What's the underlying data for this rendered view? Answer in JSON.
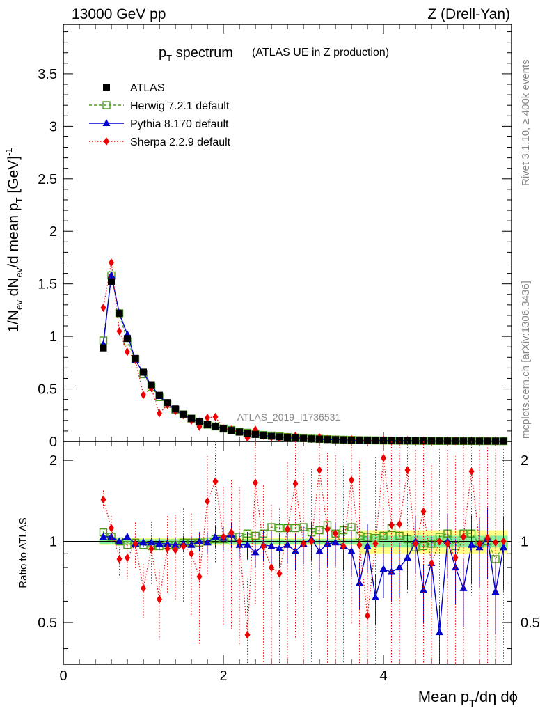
{
  "header": {
    "left": "13000 GeV pp",
    "right": "Z (Drell-Yan)"
  },
  "title": {
    "main": "p",
    "sub": "T",
    "rest": " spectrum",
    "small": "(ATLAS UE in Z production)"
  },
  "side_labels": {
    "rivet": "Rivet 3.1.10, ≥ 400k events",
    "mcplots": "mcplots.cern.ch [arXiv:1306.3436]"
  },
  "watermark": "ATLAS_2019_I1736531",
  "axes": {
    "ylabel_main": "1/N_ev dN_ev/d mean p_T [GeV]^-1",
    "ylabel_main_parts": {
      "a": "1/N",
      "a_sub": "ev",
      "b": " dN",
      "b_sub": "ev",
      "c": "/d mean p",
      "c_sub": "T",
      "d": " [GeV]",
      "d_sup": "-1"
    },
    "ylabel_ratio": "Ratio to ATLAS",
    "xlabel_parts": {
      "a": "Mean p",
      "a_sub": "T",
      "b": "/dη dϕ"
    },
    "x_ticks": [
      "0",
      "2",
      "4"
    ],
    "main_y_ticks": [
      "0",
      "0.5",
      "1",
      "1.5",
      "2",
      "2.5",
      "3",
      "3.5"
    ],
    "ratio_y_ticks": [
      "0.5",
      "1",
      "2"
    ]
  },
  "legend": [
    {
      "label": "ATLAS",
      "color": "#000000",
      "marker": "square-filled"
    },
    {
      "label": "Herwig 7.2.1 default",
      "color": "#4a9a1a",
      "marker": "square-open"
    },
    {
      "label": "Pythia 8.170 default",
      "color": "#0000cc",
      "marker": "triangle"
    },
    {
      "label": "Sherpa 2.2.9 default",
      "color": "#ee0000",
      "marker": "diamond"
    }
  ],
  "chart_data": {
    "type": "scatter",
    "xlim": [
      0,
      5.6
    ],
    "ylim_main": [
      0,
      3.97
    ],
    "ylim_ratio": [
      0.35,
      2.35
    ],
    "x": [
      0.5,
      0.6,
      0.7,
      0.8,
      0.9,
      1.0,
      1.1,
      1.2,
      1.3,
      1.4,
      1.5,
      1.6,
      1.7,
      1.8,
      1.9,
      2.0,
      2.1,
      2.2,
      2.3,
      2.4,
      2.5,
      2.6,
      2.7,
      2.8,
      2.9,
      3.0,
      3.1,
      3.2,
      3.3,
      3.4,
      3.5,
      3.6,
      3.7,
      3.8,
      3.9,
      4.0,
      4.1,
      4.2,
      4.3,
      4.4,
      4.5,
      4.6,
      4.7,
      4.8,
      4.9,
      5.0,
      5.1,
      5.2,
      5.3,
      5.4,
      5.5
    ],
    "atlas": [
      0.89,
      1.52,
      1.22,
      0.98,
      0.79,
      0.66,
      0.54,
      0.44,
      0.37,
      0.31,
      0.26,
      0.22,
      0.19,
      0.16,
      0.14,
      0.12,
      0.105,
      0.09,
      0.078,
      0.068,
      0.058,
      0.05,
      0.044,
      0.038,
      0.033,
      0.029,
      0.025,
      0.022,
      0.019,
      0.017,
      0.015,
      0.013,
      0.012,
      0.011,
      0.01,
      0.009,
      0.008,
      0.0075,
      0.007,
      0.0065,
      0.006,
      0.0055,
      0.005,
      0.0048,
      0.0045,
      0.0042,
      0.004,
      0.0038,
      0.0036,
      0.0034,
      0.0032
    ],
    "series": [
      {
        "name": "Herwig 7.2.1 default",
        "ratio": [
          1.08,
          1.04,
          1.0,
          0.97,
          0.99,
          0.97,
          0.96,
          0.96,
          0.97,
          0.97,
          0.99,
          0.99,
          0.99,
          1.0,
          1.02,
          1.02,
          1.04,
          1.04,
          1.07,
          1.05,
          1.07,
          1.13,
          1.12,
          1.12,
          1.12,
          1.13,
          1.08,
          1.1,
          1.15,
          1.07,
          1.1,
          1.13,
          1.05,
          1.04,
          1.03,
          1.05,
          1.12,
          1.05,
          1.02,
          0.95,
          0.96,
          0.98,
          1.04,
          1.07,
          0.96,
          1.07,
          1.07,
          0.98,
          1.0,
          0.86,
          0.97
        ]
      },
      {
        "name": "Pythia 8.170 default",
        "ratio": [
          1.04,
          1.04,
          1.0,
          1.04,
          0.98,
          0.99,
          0.99,
          0.98,
          0.98,
          0.97,
          0.98,
          0.97,
          1.0,
          0.99,
          1.04,
          1.03,
          1.06,
          0.97,
          0.97,
          0.91,
          0.97,
          0.96,
          0.94,
          0.97,
          0.92,
          0.98,
          1.02,
          0.92,
          0.98,
          0.99,
          0.96,
          0.92,
          0.7,
          0.96,
          0.62,
          0.79,
          0.77,
          0.8,
          0.87,
          1.0,
          0.66,
          0.83,
          0.46,
          1.0,
          0.8,
          0.67,
          0.97,
          0.95,
          1.03,
          0.65,
          0.95
        ]
      },
      {
        "name": "Sherpa 2.2.9 default",
        "ratio": [
          1.43,
          1.12,
          0.86,
          0.87,
          0.98,
          0.67,
          0.94,
          0.61,
          0.94,
          0.93,
          0.96,
          0.9,
          0.74,
          1.41,
          1.67,
          1.04,
          1.08,
          1.0,
          0.45,
          1.65,
          0.96,
          0.8,
          0.76,
          1.11,
          1.64,
          0.98,
          1.0,
          1.84,
          1.11,
          1.07,
          0.96,
          1.69,
          0.97,
          0.53,
          0.98,
          2.04,
          1.15,
          1.16,
          1.84,
          0.98,
          1.29,
          0.83,
          1.0,
          0.98,
          0.87,
          1.04,
          1.82,
          0.98,
          1.03,
          0.99,
          1.0
        ]
      }
    ],
    "ratio_band": {
      "inner": 0.05,
      "outer": 0.1
    },
    "xlabel": "Mean p_T/dη dϕ",
    "ylabel": "1/N_ev dN_ev/d mean p_T [GeV]^-1",
    "title": "p_T spectrum (ATLAS UE in Z production)"
  }
}
